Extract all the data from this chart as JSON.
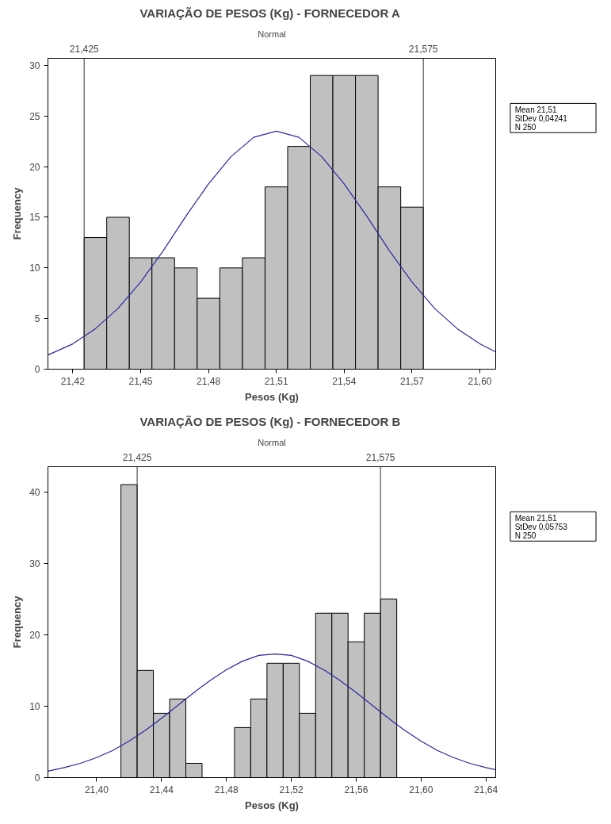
{
  "chart_data": [
    {
      "type": "histogram",
      "title": "VARIAÇÃO DE PESOS  (Kg) - FORNECEDOR A",
      "subtitle": "Normal",
      "xlabel": "Pesos (Kg)",
      "ylabel": "Frequency",
      "color": "#c0c0c0",
      "bins": [
        21.425,
        21.435,
        21.445,
        21.455,
        21.465,
        21.475,
        21.485,
        21.495,
        21.505,
        21.515,
        21.525,
        21.535,
        21.545,
        21.555,
        21.565,
        21.575
      ],
      "values": [
        13,
        15,
        11,
        11,
        10,
        7,
        10,
        11,
        18,
        22,
        29,
        29,
        29,
        18,
        16
      ],
      "series": [
        {
          "type": "line",
          "color": "#2828a0",
          "x": [
            21.409,
            21.42,
            21.43,
            21.44,
            21.45,
            21.46,
            21.47,
            21.48,
            21.49,
            21.5,
            21.51,
            21.52,
            21.53,
            21.54,
            21.55,
            21.56,
            21.57,
            21.58,
            21.59,
            21.6,
            21.607
          ],
          "values": [
            1.4,
            2.5,
            4.0,
            6.0,
            8.6,
            11.7,
            15.1,
            18.3,
            21.0,
            22.9,
            23.5,
            22.9,
            21.0,
            18.3,
            15.1,
            11.7,
            8.6,
            6.0,
            4.0,
            2.5,
            1.7
          ]
        }
      ],
      "xlim": [
        21.409,
        21.607
      ],
      "ylim": [
        0,
        30.7
      ],
      "xticks": [
        {
          "value": 21.42,
          "label": "21,42"
        },
        {
          "value": 21.45,
          "label": "21,45"
        },
        {
          "value": 21.48,
          "label": "21,48"
        },
        {
          "value": 21.51,
          "label": "21,51"
        },
        {
          "value": 21.54,
          "label": "21,54"
        },
        {
          "value": 21.57,
          "label": "21,57"
        },
        {
          "value": 21.6,
          "label": "21,60"
        }
      ],
      "yticks": [
        0,
        5,
        10,
        15,
        20,
        25,
        30
      ],
      "ref_lines": [
        {
          "axis": "x",
          "value": 21.425,
          "label": "21,425"
        },
        {
          "axis": "x",
          "value": 21.575,
          "label": "21,575"
        }
      ],
      "annotations": [
        "Mean        21,51",
        "StDev   0,04241",
        "N                250"
      ],
      "grid": false
    },
    {
      "type": "histogram",
      "title": "VARIAÇÃO DE PESOS  (Kg) - FORNECEDOR B",
      "subtitle": "Normal",
      "xlabel": "Pesos (Kg)",
      "ylabel": "Frequency",
      "color": "#c0c0c0",
      "bins": [
        21.415,
        21.425,
        21.435,
        21.445,
        21.455,
        21.465,
        21.475,
        21.485,
        21.495,
        21.505,
        21.515,
        21.525,
        21.535,
        21.545,
        21.555,
        21.565,
        21.575,
        21.585
      ],
      "values": [
        41,
        15,
        9,
        11,
        2,
        0,
        0,
        7,
        11,
        16,
        16,
        9,
        23,
        23,
        19,
        23,
        25
      ],
      "series": [
        {
          "type": "line",
          "color": "#2828a0",
          "x": [
            21.37,
            21.38,
            21.39,
            21.4,
            21.41,
            21.42,
            21.43,
            21.44,
            21.45,
            21.46,
            21.47,
            21.48,
            21.49,
            21.5,
            21.51,
            21.52,
            21.53,
            21.54,
            21.55,
            21.56,
            21.57,
            21.58,
            21.59,
            21.6,
            21.61,
            21.62,
            21.63,
            21.64,
            21.646
          ],
          "values": [
            0.9,
            1.4,
            2.0,
            2.8,
            3.8,
            5.1,
            6.6,
            8.3,
            10.1,
            11.9,
            13.6,
            15.1,
            16.3,
            17.1,
            17.3,
            17.1,
            16.3,
            15.1,
            13.6,
            11.9,
            10.1,
            8.3,
            6.6,
            5.1,
            3.8,
            2.8,
            2.0,
            1.4,
            1.1
          ]
        }
      ],
      "xlim": [
        21.37,
        21.646
      ],
      "ylim": [
        0,
        43.5
      ],
      "xticks": [
        {
          "value": 21.4,
          "label": "21,40"
        },
        {
          "value": 21.44,
          "label": "21,44"
        },
        {
          "value": 21.48,
          "label": "21,48"
        },
        {
          "value": 21.52,
          "label": "21,52"
        },
        {
          "value": 21.56,
          "label": "21,56"
        },
        {
          "value": 21.6,
          "label": "21,60"
        },
        {
          "value": 21.64,
          "label": "21,64"
        }
      ],
      "yticks": [
        0,
        10,
        20,
        30,
        40
      ],
      "ref_lines": [
        {
          "axis": "x",
          "value": 21.425,
          "label": "21,425"
        },
        {
          "axis": "x",
          "value": 21.575,
          "label": "21,575"
        }
      ],
      "annotations": [
        "Mean        21,51",
        "StDev   0,05753",
        "N                250"
      ],
      "grid": false
    }
  ]
}
